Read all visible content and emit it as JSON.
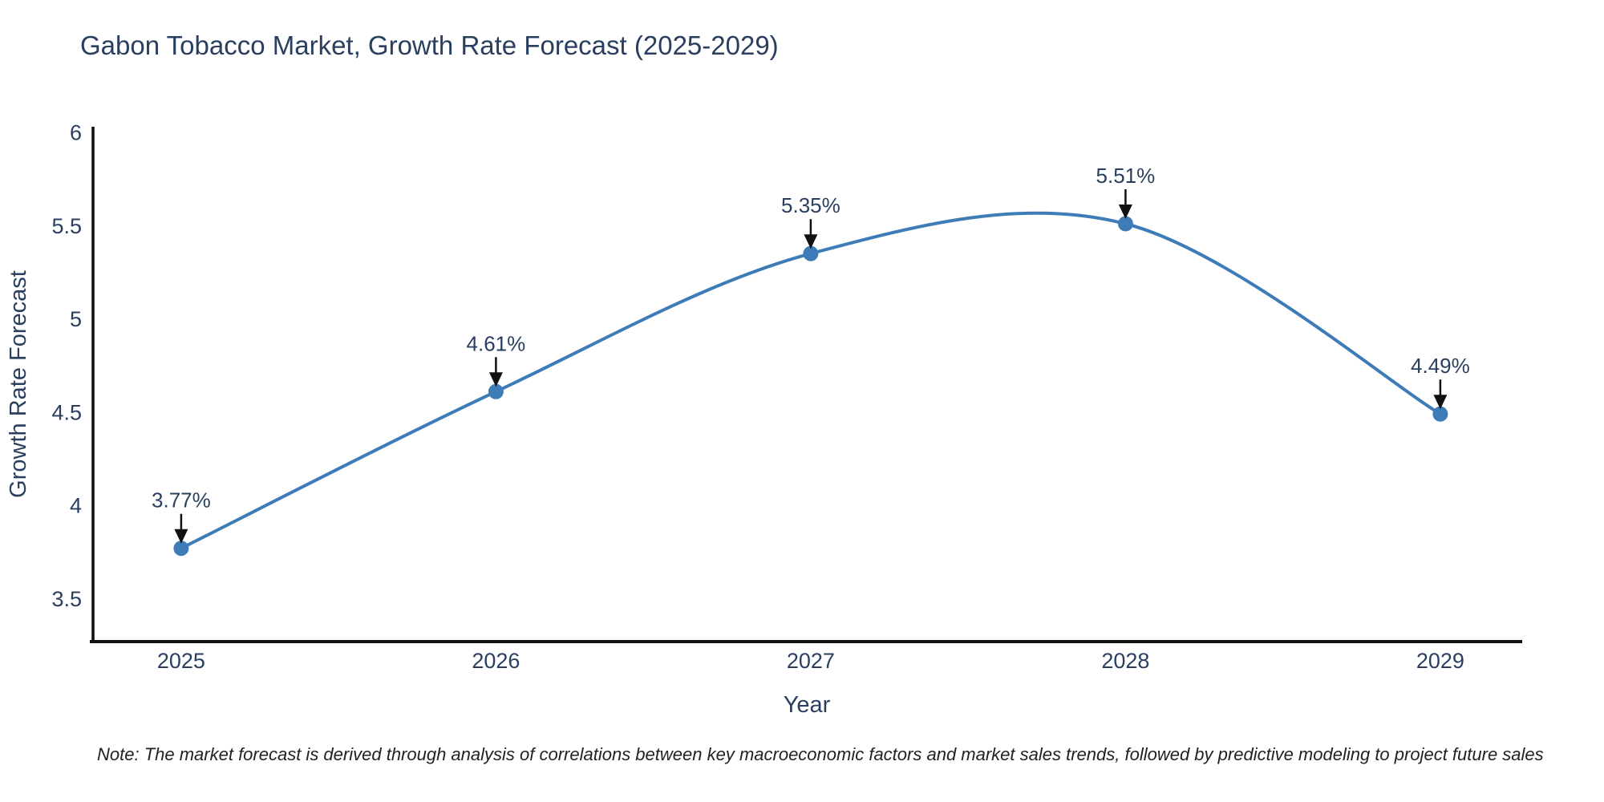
{
  "chart_data": {
    "type": "line",
    "title": "Gabon Tobacco Market, Growth Rate Forecast (2025-2029)",
    "xlabel": "Year",
    "ylabel": "Growth Rate Forecast",
    "note": "Note: The market forecast is derived through analysis of correlations between key macroeconomic factors and market sales trends, followed by predictive modeling to project future sales",
    "x": [
      2025,
      2026,
      2027,
      2028,
      2029
    ],
    "values": [
      3.77,
      4.61,
      5.35,
      5.51,
      4.49
    ],
    "point_labels": [
      "3.77%",
      "4.61%",
      "5.35%",
      "5.51%",
      "4.49%"
    ],
    "xtick_labels": [
      "2025",
      "2026",
      "2027",
      "2028",
      "2029"
    ],
    "yticks": [
      6,
      5.5,
      5,
      4.5,
      4,
      3.5
    ],
    "ytick_labels": [
      "6",
      "5.5",
      "5",
      "4.5",
      "4",
      "3.5"
    ],
    "ylim": [
      3.27,
      6.03
    ],
    "xlim": [
      2024.72,
      2029.26
    ],
    "line_shape": "spline",
    "grid": false,
    "legend": "none",
    "colors": {
      "line": "#3e7cb8",
      "marker": "#3e7cb8",
      "axis": "#111111",
      "arrow": "#111111",
      "text": "#2a3f5f",
      "note_text": "#222222",
      "background": "#ffffff"
    }
  }
}
